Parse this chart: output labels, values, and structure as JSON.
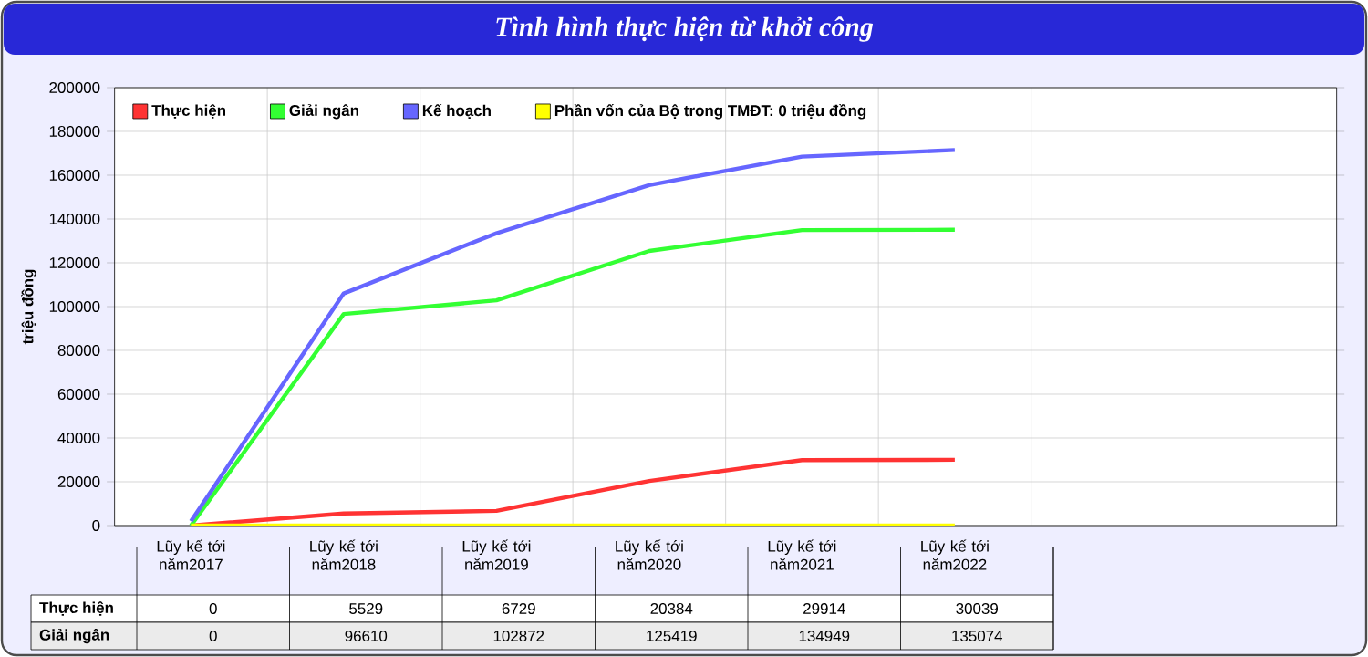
{
  "chart_data": {
    "type": "line",
    "title": "Tình hình thực hiện từ khởi công",
    "ylabel": "triệu đồng",
    "categories": [
      "Lũy kế tới năm2017",
      "Lũy kế tới năm2018",
      "Lũy kế tới năm2019",
      "Lũy kế tới năm2020",
      "Lũy kế tới năm2021",
      "Lũy kế tới năm2022"
    ],
    "series": [
      {
        "name": "Thực hiện",
        "color": "#ff3333",
        "values": [
          0,
          5529,
          6729,
          20384,
          29914,
          30039
        ],
        "value_labels": [
          "0",
          "5529",
          "6729",
          "20384",
          "29914",
          "30039"
        ]
      },
      {
        "name": "Giải ngân",
        "color": "#33ff33",
        "values": [
          0,
          96610,
          102872,
          125419,
          134949,
          135074
        ],
        "value_labels": [
          "0",
          "96610",
          "102872",
          "125419",
          "134949",
          "135074"
        ]
      },
      {
        "name": "Kế hoạch",
        "color": "#6666ff",
        "values": [
          2000,
          106000,
          133500,
          155500,
          168500,
          171500
        ]
      },
      {
        "name": "Phần vốn của Bộ trong TMĐT: 0 triệu đồng",
        "color": "#ffff00",
        "values": [
          0,
          0,
          0,
          0,
          0,
          0
        ]
      }
    ],
    "ylim": [
      0,
      200000
    ],
    "yticks": [
      0,
      20000,
      40000,
      60000,
      80000,
      100000,
      120000,
      140000,
      160000,
      180000,
      200000
    ],
    "grid": true,
    "legend": "top left",
    "line_style": "solid"
  }
}
